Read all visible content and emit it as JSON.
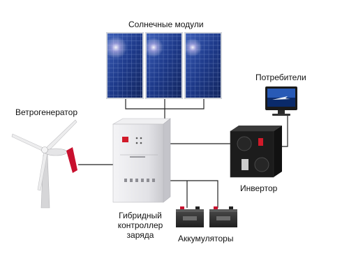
{
  "labels": {
    "solar": "Солнечные модули",
    "consumers": "Потребители",
    "wind": "Ветрогенератор",
    "inverter": "Инвертор",
    "controller_1": "Гибридный",
    "controller_2": "контроллер",
    "controller_3": "заряда",
    "batteries": "Аккумуляторы"
  },
  "colors": {
    "panel_blue": "#1e3a8a",
    "cabinet": "#e8e8ea",
    "inverter_body": "#1c1c1c",
    "blade_tip": "#c8102e",
    "wire": "#222222"
  }
}
